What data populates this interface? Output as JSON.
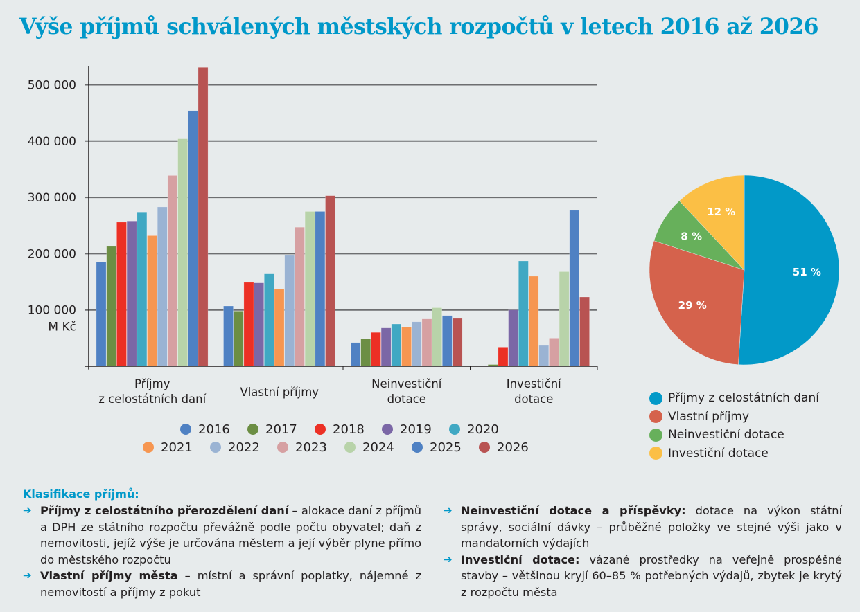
{
  "title": "Výše příjmů schválených městských rozpočtů v letech 2016 až 2026",
  "chart_data": [
    {
      "type": "bar",
      "title": "",
      "ylabel": "M Kč",
      "xlabel": "",
      "ylim": [
        0,
        530000
      ],
      "yticks": [
        100000,
        200000,
        300000,
        400000,
        500000
      ],
      "ytick_labels": [
        "100 000",
        "200 000",
        "300 000",
        "400 000",
        "500 000"
      ],
      "grid": true,
      "categories": [
        "Příjmy\nz celostátních daní",
        "Vlastní příjmy",
        "Neinvestiční\ndotace",
        "Investiční\ndotace"
      ],
      "category_lines": [
        [
          "Příjmy",
          "z celostátních daní"
        ],
        [
          "Vlastní příjmy"
        ],
        [
          "Neinvestiční",
          "dotace"
        ],
        [
          "Investiční",
          "dotace"
        ]
      ],
      "legend_position": "bottom",
      "series": [
        {
          "name": "2016",
          "color": "#4f81c3",
          "values": [
            185000,
            107000,
            42000,
            0
          ]
        },
        {
          "name": "2017",
          "color": "#6c8e44",
          "values": [
            213000,
            98000,
            49000,
            3000
          ]
        },
        {
          "name": "2018",
          "color": "#ec3025",
          "values": [
            256000,
            149000,
            60000,
            34000
          ]
        },
        {
          "name": "2019",
          "color": "#7b67a6",
          "values": [
            258000,
            148000,
            68000,
            100000
          ]
        },
        {
          "name": "2020",
          "color": "#40a8c3",
          "values": [
            274000,
            164000,
            75000,
            187000
          ]
        },
        {
          "name": "2021",
          "color": "#f69651",
          "values": [
            232000,
            137000,
            70000,
            160000
          ]
        },
        {
          "name": "2022",
          "color": "#9ab3d3",
          "values": [
            283000,
            197000,
            79000,
            37000
          ]
        },
        {
          "name": "2023",
          "color": "#d6a0a2",
          "values": [
            339000,
            247000,
            84000,
            50000
          ]
        },
        {
          "name": "2024",
          "color": "#b8d3a9",
          "values": [
            404000,
            275000,
            104000,
            168000
          ]
        },
        {
          "name": "2025",
          "color": "#4f81c3",
          "values": [
            454000,
            275000,
            90000,
            277000
          ]
        },
        {
          "name": "2026",
          "color": "#b85352",
          "values": [
            531000,
            303000,
            85000,
            123000
          ]
        }
      ]
    },
    {
      "type": "pie",
      "title": "",
      "legend_position": "bottom",
      "slices": [
        {
          "label": "Příjmy z celostátních daní",
          "value": 51,
          "text": "51 %",
          "color": "#0299c8"
        },
        {
          "label": "Vlastní příjmy",
          "value": 29,
          "text": "29 %",
          "color": "#d5624c"
        },
        {
          "label": "Neinvestiční dotace",
          "value": 8,
          "text": "8 %",
          "color": "#67b05b"
        },
        {
          "label": "Investiční dotace",
          "value": 12,
          "text": "12 %",
          "color": "#fbbf45"
        }
      ]
    }
  ],
  "notes": {
    "heading": "Klasifikace příjmů:",
    "left": [
      {
        "bold": "Příjmy z celostátního přerozdělení daní",
        "text": " – alokace daní z příjmů a DPH ze státního rozpočtu převážně podle počtu obyvatel; daň z nemovitosti, jejíž výše je určována městem a její výběr plyne přímo do městského rozpočtu"
      },
      {
        "bold": "Vlastní příjmy města",
        "text": " – místní a správní poplatky, nájemné z nemovitostí a příjmy z pokut"
      }
    ],
    "right": [
      {
        "bold": "Neinvestiční dotace a příspěvky:",
        "text": " dotace na výkon státní správy, sociální dávky – průběžné položky ve stejné výši jako v mandatorních výdajích"
      },
      {
        "bold": "Investiční dotace:",
        "text": " vázané prostředky na veřejně prospěšné stavby – většinou kryjí 60–85 % potřebných výdajů, zbytek je krytý z rozpočtu města"
      }
    ],
    "arrow_icon": "➔"
  }
}
